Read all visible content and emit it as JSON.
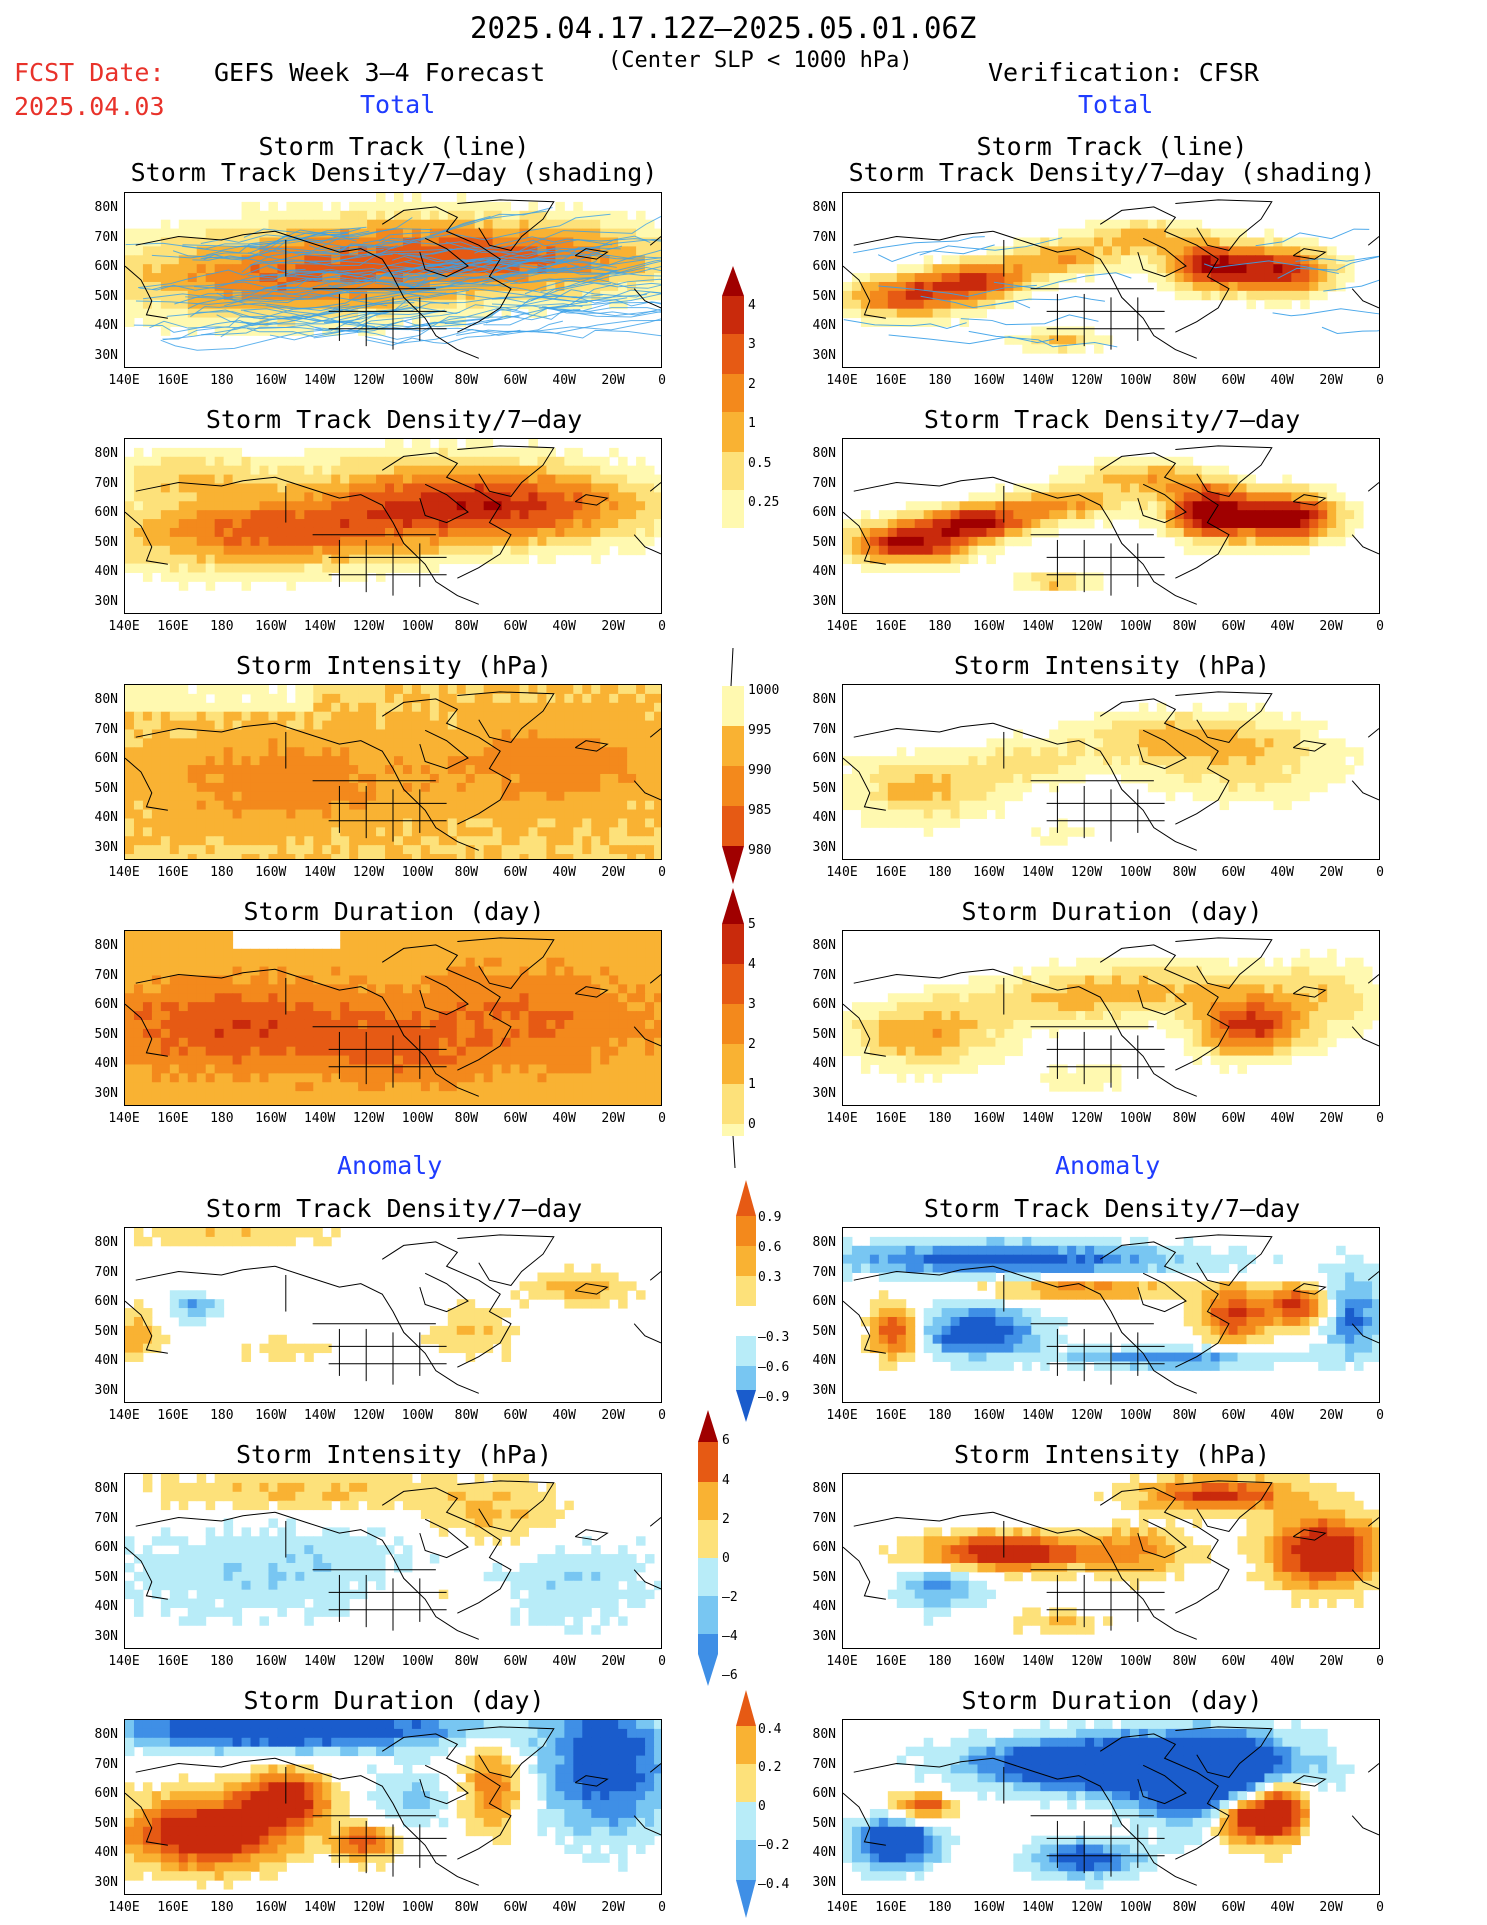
{
  "header": {
    "date_range": "2025.04.17.12Z–2025.05.01.06Z",
    "fcst_label": "FCST Date:",
    "fcst_date": "2025.04.03",
    "forecast_title": "GEFS Week 3–4 Forecast",
    "criteria": "(Center SLP < 1000 hPa)",
    "verification": "Verification: CFSR"
  },
  "sections": {
    "total": "Total",
    "anomaly": "Anomaly"
  },
  "panel_titles": {
    "track_line": "Storm Track (line)",
    "track_density_shading": "Storm Track Density/7–day (shading)",
    "track_density": "Storm Track Density/7–day",
    "intensity": "Storm Intensity (hPa)",
    "duration": "Storm Duration (day)"
  },
  "axes": {
    "lat_labels": [
      "80N",
      "70N",
      "60N",
      "50N",
      "40N",
      "30N"
    ],
    "lon_labels": [
      "140E",
      "160E",
      "180",
      "160W",
      "140W",
      "120W",
      "100W",
      "80W",
      "60W",
      "40W",
      "20W",
      "0"
    ]
  },
  "colorbars": {
    "density_total": [
      "4",
      "3",
      "2",
      "1",
      "0.5",
      "0.25"
    ],
    "intensity_total": [
      "1000",
      "995",
      "990",
      "985",
      "980"
    ],
    "duration_total": [
      "5",
      "4",
      "3",
      "2",
      "1",
      "0"
    ],
    "density_anom": [
      "0.9",
      "0.6",
      "0.3",
      "–0.3",
      "–0.6",
      "–0.9"
    ],
    "intensity_anom": [
      "6",
      "4",
      "2",
      "0",
      "–2",
      "–4",
      "–6"
    ],
    "duration_anom": [
      "0.4",
      "0.2",
      "0",
      "–0.2",
      "–0.4"
    ]
  },
  "colors": {
    "warm": [
      "#fff9b0",
      "#fde17a",
      "#f9b233",
      "#f3891c",
      "#e65a14",
      "#c92a0c",
      "#a00000"
    ],
    "cool": [
      "#b8ecf8",
      "#78c6f2",
      "#3f8fe6",
      "#1a5ccc"
    ],
    "track_line": "#3aa0e8",
    "title_red": "#e8322a",
    "section_blue": "#1f3cff"
  }
}
